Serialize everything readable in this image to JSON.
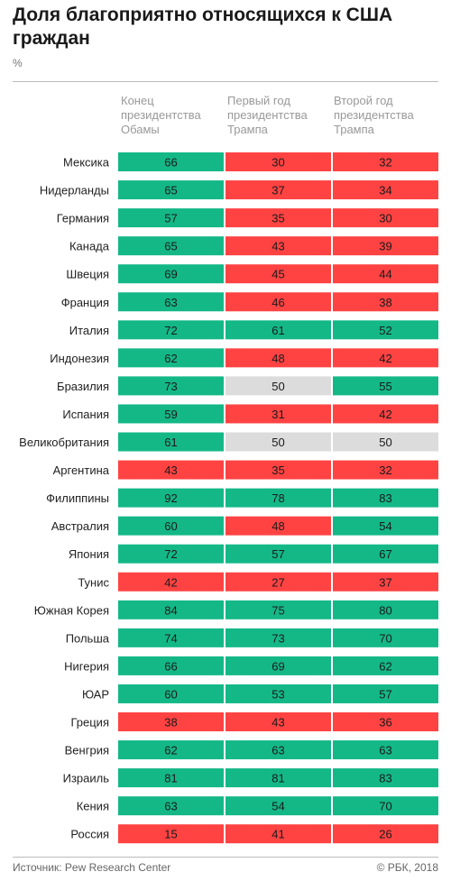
{
  "title": "Доля благоприятно относящихся к США граждан",
  "unit": "%",
  "source": "Источник: Pew Research Center",
  "copyright": "© РБК, 2018",
  "colors": {
    "positive": "#14b887",
    "negative": "#ff4343",
    "neutral": "#dcdcdc"
  },
  "chart_data": {
    "type": "table",
    "title": "Доля благоприятно относящихся к США граждан",
    "unit": "%",
    "columns": [
      "Конец президентства Обамы",
      "Первый год президентства Трампа",
      "Второй год президентства Трампа"
    ],
    "column_lines": [
      [
        "Конец",
        "президентства",
        "Обамы"
      ],
      [
        "Первый год",
        "президентства",
        "Трампа"
      ],
      [
        "Второй год",
        "президентства",
        "Трампа"
      ]
    ],
    "rows": [
      {
        "country": "Мексика",
        "values": [
          66,
          30,
          32
        ]
      },
      {
        "country": "Нидерланды",
        "values": [
          65,
          37,
          34
        ]
      },
      {
        "country": "Германия",
        "values": [
          57,
          35,
          30
        ]
      },
      {
        "country": "Канада",
        "values": [
          65,
          43,
          39
        ]
      },
      {
        "country": "Швеция",
        "values": [
          69,
          45,
          44
        ]
      },
      {
        "country": "Франция",
        "values": [
          63,
          46,
          38
        ]
      },
      {
        "country": "Италия",
        "values": [
          72,
          61,
          52
        ]
      },
      {
        "country": "Индонезия",
        "values": [
          62,
          48,
          42
        ]
      },
      {
        "country": "Бразилия",
        "values": [
          73,
          50,
          55
        ]
      },
      {
        "country": "Испания",
        "values": [
          59,
          31,
          42
        ]
      },
      {
        "country": "Великобритания",
        "values": [
          61,
          50,
          50
        ]
      },
      {
        "country": "Аргентина",
        "values": [
          43,
          35,
          32
        ]
      },
      {
        "country": "Филиппины",
        "values": [
          92,
          78,
          83
        ]
      },
      {
        "country": "Австралия",
        "values": [
          60,
          48,
          54
        ]
      },
      {
        "country": "Япония",
        "values": [
          72,
          57,
          67
        ]
      },
      {
        "country": "Тунис",
        "values": [
          42,
          27,
          37
        ]
      },
      {
        "country": "Южная Корея",
        "values": [
          84,
          75,
          80
        ]
      },
      {
        "country": "Польша",
        "values": [
          74,
          73,
          70
        ]
      },
      {
        "country": "Нигерия",
        "values": [
          66,
          69,
          62
        ]
      },
      {
        "country": "ЮАР",
        "values": [
          60,
          53,
          57
        ]
      },
      {
        "country": "Греция",
        "values": [
          38,
          43,
          36
        ]
      },
      {
        "country": "Венгрия",
        "values": [
          62,
          63,
          63
        ]
      },
      {
        "country": "Израиль",
        "values": [
          81,
          81,
          83
        ]
      },
      {
        "country": "Кения",
        "values": [
          63,
          54,
          70
        ]
      },
      {
        "country": "Россия",
        "values": [
          15,
          41,
          26
        ]
      }
    ]
  }
}
